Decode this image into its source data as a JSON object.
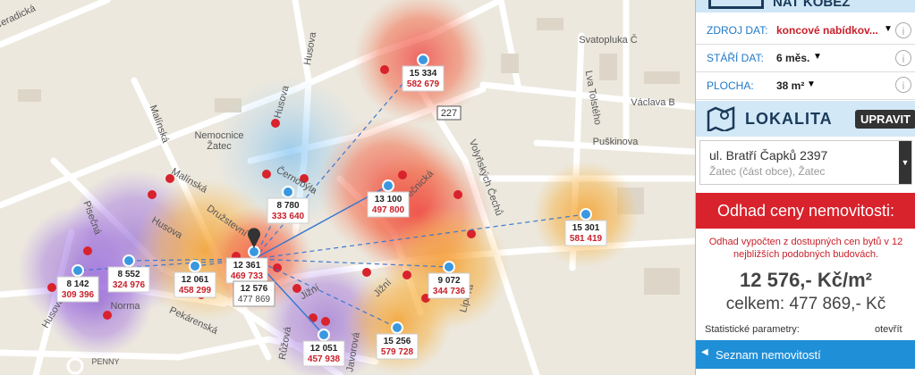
{
  "sidebar": {
    "header_title": "NAT KOBEŽ",
    "filters": [
      {
        "label": "ZDROJ DAT:",
        "value": "koncové nabídkov..."
      },
      {
        "label": "STÁŘÍ DAT:",
        "value": "6 měs."
      },
      {
        "label": "PLOCHA:",
        "value": "38 m²"
      }
    ],
    "location_title": "LOKALITA",
    "edit_button": "UPRAVIT",
    "address": "ul. Bratří Čapků 2397",
    "address_sub": "Žatec (část obce), Žatec",
    "estimate_title": "Odhad ceny nemovitosti:",
    "estimate_note": "Odhad vypočten z dostupných cen bytů v 12 nejbližších podobných budovách.",
    "price_per_m2": "12 576,- Kč/m²",
    "price_total": "celkem: 477 869,- Kč",
    "stats_label": "Statistické parametry:",
    "stats_link": "otevřít",
    "list_button": "Seznam nemovitostí"
  },
  "map": {
    "labels": [
      "Čeradická",
      "Husova",
      "Husova",
      "Malínská",
      "Nemocnice\nŽatec",
      "Černobýla",
      "Malínská",
      "Husova",
      "Družstevní",
      "Pisečná",
      "Husova",
      "Norma",
      "Pekárenská",
      "Ječnická",
      "Volyňských Čechů",
      "Jižní",
      "Jižní",
      "Lipová",
      "Růžová",
      "Javorová",
      "Svatopluka Č",
      "Lva Tolstého",
      "Václava B",
      "Puškinova",
      "PENNY",
      "227"
    ],
    "markers": [
      {
        "price_m2": "15 334",
        "price_total": "582 679"
      },
      {
        "price_m2": "8 780",
        "price_total": "333 640"
      },
      {
        "price_m2": "13 100",
        "price_total": "497 800"
      },
      {
        "price_m2": "15 301",
        "price_total": "581 419"
      },
      {
        "price_m2": "8 552",
        "price_total": "324 976"
      },
      {
        "price_m2": "8 142",
        "price_total": "309 396"
      },
      {
        "price_m2": "12 061",
        "price_total": "458 299"
      },
      {
        "price_m2": "12 361",
        "price_total": "469 733"
      },
      {
        "price_m2": "9 072",
        "price_total": "344 736"
      },
      {
        "price_m2": "12 051",
        "price_total": "457 938"
      },
      {
        "price_m2": "15 256",
        "price_total": "579 728"
      }
    ],
    "center": {
      "price_m2": "12 576",
      "price_total": "477 869"
    }
  }
}
